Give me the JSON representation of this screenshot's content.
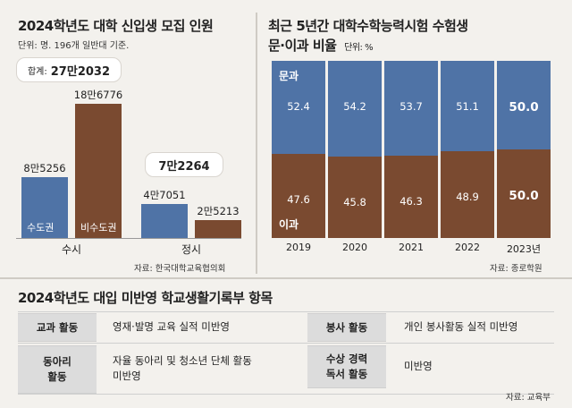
{
  "left_chart": {
    "title": "2024학년도 대학 신입생 모집 인원",
    "unit_note": "단위: 명. 196개 일반대 기준.",
    "total_prefix": "합계:",
    "total_value": "27만2032",
    "source": "자료: 한국대학교육협의회"
  },
  "right_chart": {
    "title": "최근 5년간 대학수학능력시험 수험생",
    "subtitle": "문·이과 비율",
    "unit": "단위: %",
    "source": "자료: 종로학원"
  },
  "chart_data": [
    {
      "type": "bar",
      "title": "2024학년도 대학 신입생 모집 인원",
      "categories": [
        "수시",
        "정시"
      ],
      "series": [
        {
          "name": "수도권",
          "values": [
            85256,
            47051
          ],
          "labels": [
            "8만5256",
            "4만7051"
          ],
          "color": "#4f73a6"
        },
        {
          "name": "비수도권",
          "values": [
            186776,
            25213
          ],
          "labels": [
            "18만6776",
            "2만5213"
          ],
          "color": "#7a4a30"
        }
      ],
      "group_totals": [
        "",
        "7만2264"
      ]
    },
    {
      "type": "bar",
      "stacked": true,
      "title": "최근 5년간 대학수학능력시험 수험생 문·이과 비율",
      "categories": [
        "2019",
        "2020",
        "2021",
        "2022",
        "2023년"
      ],
      "series": [
        {
          "name": "문과",
          "values": [
            52.4,
            54.2,
            53.7,
            51.1,
            50.0
          ],
          "labels": [
            "52.4",
            "54.2",
            "53.7",
            "51.1",
            "50.0"
          ],
          "color": "#4f73a6"
        },
        {
          "name": "이과",
          "values": [
            47.6,
            45.8,
            46.3,
            48.9,
            50.0
          ],
          "labels": [
            "47.6",
            "45.8",
            "46.3",
            "48.9",
            "50.0"
          ],
          "color": "#7a4a30"
        }
      ],
      "ylim": [
        0,
        100
      ]
    }
  ],
  "table": {
    "title": "2024학년도 대입 미반영 학교생활기록부 항목",
    "source": "자료: 교육부",
    "rows_left": [
      {
        "head": "교과 활동",
        "value": "영재·발명 교육 실적 미반영"
      },
      {
        "head": "동아리\n활동",
        "value": "자율 동아리 및 청소년 단체 활동\n미반영"
      }
    ],
    "rows_right": [
      {
        "head": "봉사 활동",
        "value": "개인 봉사활동 실적 미반영"
      },
      {
        "head": "수상 경력\n독서 활동",
        "value": "미반영"
      }
    ]
  }
}
